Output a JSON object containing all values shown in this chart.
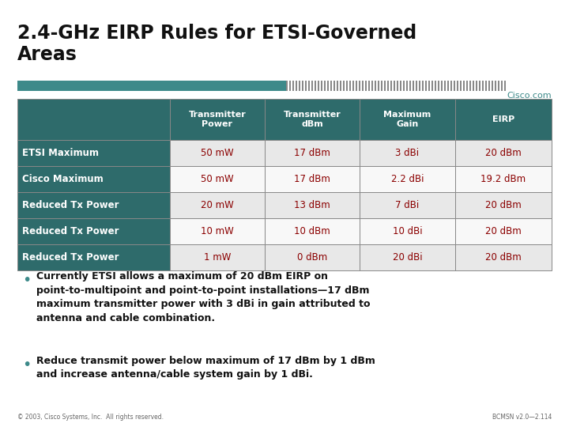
{
  "title": "2.4-GHz EIRP Rules for ETSI-Governed\nAreas",
  "bg_color": "#ffffff",
  "header_bar_teal": "#3d8a8a",
  "header_bar_gray": "#999999",
  "cisco_text": "Cisco.com",
  "cisco_color": "#3d8a8a",
  "table_header_bg": "#2e6b6b",
  "table_header_fg": "#ffffff",
  "table_label_bg": "#2e6b6b",
  "table_label_fg": "#ffffff",
  "table_row_bg_odd": "#e8e8e8",
  "table_row_bg_even": "#f8f8f8",
  "table_border_color": "#888888",
  "col_headers": [
    "",
    "Transmitter\nPower",
    "Transmitter\ndBm",
    "Maximum\nGain",
    "EIRP"
  ],
  "rows": [
    [
      "ETSI Maximum",
      "50 mW",
      "17 dBm",
      "3 dBi",
      "20 dBm"
    ],
    [
      "Cisco Maximum",
      "50 mW",
      "17 dBm",
      "2.2 dBi",
      "19.2 dBm"
    ],
    [
      "Reduced Tx Power",
      "20 mW",
      "13 dBm",
      "7 dBi",
      "20 dBm"
    ],
    [
      "Reduced Tx Power",
      "10 mW",
      "10 dBm",
      "10 dBi",
      "20 dBm"
    ],
    [
      "Reduced Tx Power",
      "1 mW",
      "0 dBm",
      "20 dBi",
      "20 dBm"
    ]
  ],
  "data_cell_color": "#8b0000",
  "bullet_color": "#3d8a8a",
  "text_color": "#111111",
  "bullet1": "Currently ETSI allows a maximum of 20 dBm EIRP on\npoint-to-multipoint and point-to-point installations—17 dBm\nmaximum transmitter power with 3 dBi in gain attributed to\nantenna and cable combination.",
  "bullet2": "Reduce transmit power below maximum of 17 dBm by 1 dBm\nand increase antenna/cable system gain by 1 dBi.",
  "footer_left": "© 2003, Cisco Systems, Inc.  All rights reserved.",
  "footer_right": "BCMSN v2.0—2.114"
}
